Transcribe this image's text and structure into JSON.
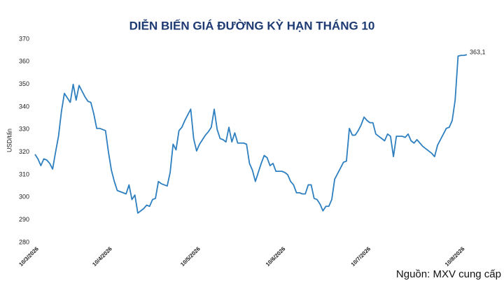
{
  "chart_data": {
    "type": "line",
    "title": "DIỄN BIẾN GIÁ ĐƯỜNG KỲ HẠN THÁNG 10",
    "y_label": "USD/tấn",
    "source": "Nguồn: MXV cung cấp",
    "color": "#2e7fc0",
    "ylim": [
      280,
      370
    ],
    "yticks": [
      280,
      290,
      300,
      310,
      320,
      330,
      340,
      350,
      360,
      370
    ],
    "grid": false,
    "categories": [
      "10/3/2026",
      null,
      null,
      null,
      null,
      null,
      null,
      null,
      null,
      null,
      null,
      null,
      null,
      null,
      null,
      null,
      null,
      null,
      null,
      null,
      null,
      null,
      null,
      null,
      null,
      "10/4/2026",
      null,
      null,
      null,
      null,
      null,
      null,
      null,
      null,
      null,
      null,
      null,
      null,
      null,
      null,
      null,
      null,
      null,
      null,
      null,
      null,
      null,
      null,
      null,
      null,
      null,
      null,
      null,
      null,
      null,
      "10/5/2026",
      null,
      null,
      null,
      null,
      null,
      null,
      null,
      null,
      null,
      null,
      null,
      null,
      null,
      null,
      null,
      null,
      null,
      null,
      null,
      null,
      null,
      null,
      null,
      null,
      null,
      null,
      null,
      null,
      "10/6/2026",
      null,
      null,
      null,
      null,
      null,
      null,
      null,
      null,
      null,
      null,
      null,
      null,
      null,
      null,
      null,
      null,
      null,
      null,
      null,
      null,
      null,
      null,
      null,
      null,
      null,
      null,
      null,
      null,
      "10/7/2026",
      null,
      null,
      null,
      null,
      null,
      null,
      null,
      null,
      null,
      null,
      null,
      null,
      null,
      null,
      null,
      null,
      null,
      null,
      null,
      null,
      null,
      null,
      null,
      null,
      null,
      null,
      null,
      null,
      null,
      null,
      null,
      "10/8/2026",
      null,
      null
    ],
    "values": [
      319,
      317,
      314,
      317,
      316.5,
      315,
      312.5,
      320,
      327,
      338,
      346,
      344,
      342,
      350,
      343,
      349.5,
      347,
      344.5,
      342.5,
      342,
      337,
      330.5,
      330.5,
      330,
      329.5,
      320,
      312,
      307,
      303,
      302.5,
      302,
      301.5,
      305.5,
      299,
      301,
      293,
      294,
      295,
      296.5,
      296,
      299,
      299.5,
      307,
      306,
      305.5,
      305,
      311,
      323.5,
      321,
      329.5,
      331,
      334,
      336.5,
      339,
      326,
      320.5,
      323.5,
      325.5,
      327.5,
      329,
      331,
      339,
      330,
      326,
      325.5,
      324.5,
      331,
      324.5,
      328.5,
      324,
      324,
      324,
      323.5,
      315,
      312,
      307,
      311,
      315,
      318.5,
      317.5,
      314,
      315,
      311.5,
      311.5,
      311.5,
      311,
      310,
      307,
      305.5,
      302,
      302,
      301.5,
      301.5,
      305.5,
      305.5,
      299.5,
      299,
      297,
      294,
      296,
      296,
      299,
      308,
      310.5,
      313,
      315.5,
      316,
      330.5,
      327.5,
      327.5,
      329.5,
      332,
      335.5,
      334,
      333,
      333,
      328,
      327,
      326,
      325,
      328,
      327,
      318,
      327,
      327,
      327,
      326.5,
      328,
      325,
      324,
      325.5,
      324,
      322.5,
      321.5,
      320.5,
      319.5,
      318,
      323,
      325.5,
      328,
      330.5,
      331,
      334,
      343,
      362.5,
      362.8,
      362.8,
      363.1
    ],
    "value_labels": [
      null,
      null,
      null,
      null,
      null,
      null,
      null,
      null,
      null,
      null,
      null,
      null,
      null,
      null,
      null,
      null,
      null,
      null,
      null,
      null,
      null,
      null,
      null,
      null,
      null,
      null,
      null,
      null,
      null,
      null,
      null,
      null,
      null,
      null,
      null,
      null,
      null,
      null,
      null,
      null,
      null,
      null,
      null,
      null,
      null,
      null,
      null,
      null,
      null,
      null,
      null,
      null,
      null,
      null,
      null,
      null,
      null,
      null,
      null,
      null,
      null,
      null,
      null,
      null,
      null,
      null,
      null,
      null,
      null,
      null,
      null,
      null,
      null,
      null,
      null,
      null,
      null,
      null,
      null,
      null,
      null,
      null,
      null,
      null,
      null,
      null,
      null,
      null,
      null,
      null,
      null,
      null,
      null,
      null,
      null,
      null,
      null,
      null,
      null,
      null,
      null,
      null,
      null,
      null,
      null,
      null,
      null,
      null,
      null,
      null,
      null,
      null,
      null,
      null,
      null,
      null,
      null,
      null,
      null,
      null,
      null,
      null,
      null,
      null,
      null,
      null,
      null,
      null,
      null,
      null,
      null,
      null,
      null,
      null,
      null,
      null,
      null,
      null,
      null,
      null,
      null,
      null,
      null,
      null,
      null,
      null,
      null,
      "363,1"
    ]
  }
}
